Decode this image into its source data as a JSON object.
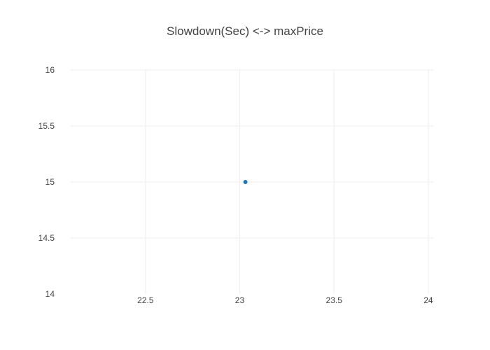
{
  "chart_data": {
    "type": "scatter",
    "title": "Slowdown(Sec) <-> maxPrice",
    "xlabel": "",
    "ylabel": "",
    "xlim": [
      22.1,
      24.03
    ],
    "ylim": [
      14,
      16
    ],
    "x_ticks": [
      "22.5",
      "23",
      "23.5",
      "24"
    ],
    "y_ticks": [
      "14",
      "14.5",
      "15",
      "15.5",
      "16"
    ],
    "grid": true,
    "legend": "none",
    "marker_color": "#1f77b4",
    "series": [
      {
        "x": [
          23.03
        ],
        "y": [
          15
        ]
      }
    ]
  }
}
